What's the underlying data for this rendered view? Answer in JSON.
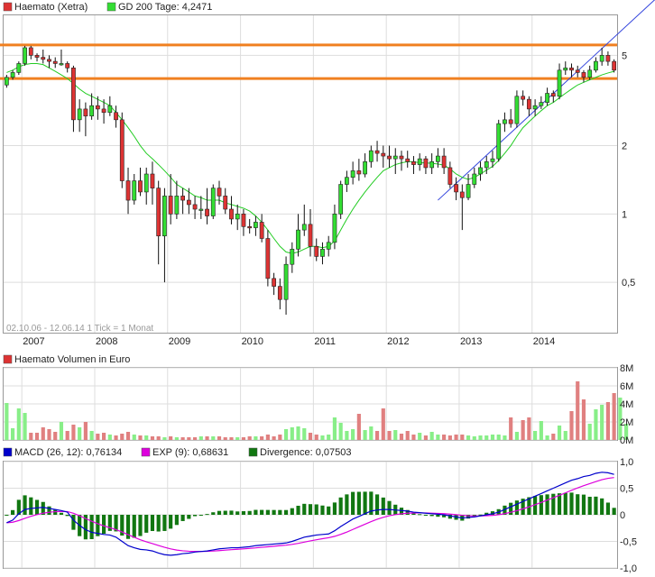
{
  "colors": {
    "up": "#33dd33",
    "down": "#dd3333",
    "ma": "#22cc22",
    "support": "#f08020",
    "trend": "#3344dd",
    "macd": "#0000cc",
    "exp": "#dd00dd",
    "divergence": "#117711",
    "vol_up": "#88ee88",
    "vol_down": "#e08080",
    "grid": "#dddddd"
  },
  "chart_data": [
    {
      "type": "candlestick",
      "legend": [
        {
          "label": "Haemato (Xetra)",
          "color": "#dd3333"
        },
        {
          "label": "GD 200 Tage: 4,2471",
          "color": "#33dd33"
        }
      ],
      "footer_note": "02.10.06 - 12.06.14   1 Tick = 1 Monat",
      "scale": "log",
      "ylim": [
        0.3,
        7.5
      ],
      "y_ticks": [
        {
          "v": 0.5,
          "label": "0,5"
        },
        {
          "v": 1,
          "label": "1"
        },
        {
          "v": 2,
          "label": "2"
        },
        {
          "v": 5,
          "label": "5"
        }
      ],
      "x_labels": [
        {
          "year": 2007,
          "label": "2007"
        },
        {
          "year": 2008,
          "label": "2008"
        },
        {
          "year": 2009,
          "label": "2009"
        },
        {
          "year": 2010,
          "label": "2010"
        },
        {
          "year": 2011,
          "label": "2011"
        },
        {
          "year": 2012,
          "label": "2012"
        },
        {
          "year": 2013,
          "label": "2013"
        },
        {
          "year": 2014,
          "label": "2014"
        }
      ],
      "start": "2006-10",
      "candles": [
        [
          3.7,
          4.0,
          4.1,
          3.6
        ],
        [
          4.0,
          4.2,
          4.3,
          3.9
        ],
        [
          4.2,
          4.6,
          4.7,
          4.1
        ],
        [
          4.6,
          5.4,
          5.5,
          4.5
        ],
        [
          5.4,
          5.0,
          5.5,
          4.8
        ],
        [
          5.0,
          4.9,
          5.1,
          4.7
        ],
        [
          4.9,
          4.8,
          5.3,
          4.6
        ],
        [
          4.8,
          4.7,
          5.0,
          4.4
        ],
        [
          4.7,
          4.6,
          4.9,
          4.4
        ],
        [
          4.6,
          4.6,
          5.3,
          4.5
        ],
        [
          4.6,
          4.4,
          4.7,
          4.2
        ],
        [
          4.4,
          2.6,
          4.5,
          2.3
        ],
        [
          2.6,
          2.9,
          3.2,
          2.3
        ],
        [
          2.9,
          2.7,
          3.1,
          2.2
        ],
        [
          2.7,
          3.0,
          3.4,
          2.6
        ],
        [
          3.0,
          2.9,
          3.3,
          2.6
        ],
        [
          2.9,
          2.8,
          3.2,
          2.5
        ],
        [
          2.8,
          3.0,
          3.3,
          2.7
        ],
        [
          2.8,
          2.6,
          3.0,
          2.4
        ],
        [
          2.6,
          1.4,
          2.8,
          1.3
        ],
        [
          1.4,
          1.15,
          1.6,
          1.0
        ],
        [
          1.15,
          1.4,
          1.5,
          1.1
        ],
        [
          1.4,
          1.25,
          1.6,
          1.2
        ],
        [
          1.25,
          1.5,
          1.6,
          1.1
        ],
        [
          1.5,
          1.3,
          1.7,
          1.1
        ],
        [
          1.3,
          0.8,
          1.4,
          0.6
        ],
        [
          0.8,
          1.2,
          1.3,
          0.5
        ],
        [
          1.2,
          1.0,
          1.5,
          0.9
        ],
        [
          1.0,
          1.2,
          1.4,
          0.95
        ],
        [
          1.2,
          1.15,
          1.3,
          1.0
        ],
        [
          1.15,
          1.1,
          1.3,
          1.0
        ],
        [
          1.1,
          1.05,
          1.2,
          0.95
        ],
        [
          1.05,
          1.05,
          1.2,
          0.95
        ],
        [
          1.05,
          0.98,
          1.3,
          0.9
        ],
        [
          0.98,
          1.3,
          1.35,
          0.95
        ],
        [
          1.3,
          1.2,
          1.4,
          1.1
        ],
        [
          1.2,
          1.05,
          1.3,
          1.0
        ],
        [
          1.05,
          0.95,
          1.2,
          0.9
        ],
        [
          0.95,
          1.0,
          1.1,
          0.85
        ],
        [
          1.0,
          0.88,
          1.05,
          0.8
        ],
        [
          0.88,
          0.87,
          0.95,
          0.82
        ],
        [
          0.87,
          0.92,
          0.98,
          0.8
        ],
        [
          0.92,
          0.78,
          1.0,
          0.75
        ],
        [
          0.78,
          0.52,
          0.85,
          0.48
        ],
        [
          0.52,
          0.48,
          0.55,
          0.44
        ],
        [
          0.48,
          0.42,
          0.52,
          0.38
        ],
        [
          0.42,
          0.6,
          0.65,
          0.36
        ],
        [
          0.6,
          0.7,
          0.75,
          0.55
        ],
        [
          0.7,
          0.85,
          1.0,
          0.65
        ],
        [
          0.85,
          0.9,
          1.1,
          0.8
        ],
        [
          0.9,
          0.72,
          1.05,
          0.65
        ],
        [
          0.72,
          0.65,
          0.78,
          0.62
        ],
        [
          0.65,
          0.7,
          0.75,
          0.6
        ],
        [
          0.7,
          0.75,
          0.8,
          0.65
        ],
        [
          0.75,
          1.0,
          1.1,
          0.7
        ],
        [
          1.0,
          1.35,
          1.4,
          0.95
        ],
        [
          1.35,
          1.45,
          1.55,
          1.25
        ],
        [
          1.45,
          1.55,
          1.7,
          1.35
        ],
        [
          1.55,
          1.5,
          1.75,
          1.4
        ],
        [
          1.5,
          1.7,
          1.85,
          1.45
        ],
        [
          1.7,
          1.9,
          2.0,
          1.6
        ],
        [
          1.9,
          1.85,
          2.1,
          1.7
        ],
        [
          1.85,
          1.8,
          2.0,
          1.6
        ],
        [
          1.8,
          1.75,
          2.0,
          1.6
        ],
        [
          1.75,
          1.8,
          1.95,
          1.5
        ],
        [
          1.8,
          1.75,
          1.9,
          1.55
        ],
        [
          1.75,
          1.7,
          1.9,
          1.6
        ],
        [
          1.7,
          1.65,
          1.8,
          1.5
        ],
        [
          1.65,
          1.75,
          1.85,
          1.55
        ],
        [
          1.75,
          1.6,
          1.8,
          1.5
        ],
        [
          1.6,
          1.7,
          1.85,
          1.5
        ],
        [
          1.7,
          1.8,
          1.95,
          1.6
        ],
        [
          1.8,
          1.6,
          1.95,
          1.5
        ],
        [
          1.6,
          1.35,
          1.7,
          1.3
        ],
        [
          1.35,
          1.25,
          1.45,
          1.15
        ],
        [
          1.25,
          1.18,
          1.35,
          0.85
        ],
        [
          1.18,
          1.35,
          1.5,
          1.15
        ],
        [
          1.35,
          1.5,
          1.6,
          1.3
        ],
        [
          1.5,
          1.6,
          1.7,
          1.4
        ],
        [
          1.6,
          1.7,
          1.8,
          1.5
        ],
        [
          1.7,
          1.75,
          1.9,
          1.6
        ],
        [
          1.75,
          2.5,
          2.6,
          1.7
        ],
        [
          2.5,
          2.6,
          2.8,
          2.3
        ],
        [
          2.6,
          2.5,
          2.9,
          2.4
        ],
        [
          2.5,
          3.3,
          3.5,
          2.4
        ],
        [
          3.3,
          3.2,
          3.5,
          3.0
        ],
        [
          3.2,
          2.9,
          3.3,
          2.7
        ],
        [
          2.9,
          3.0,
          3.2,
          2.7
        ],
        [
          3.0,
          3.1,
          3.3,
          2.9
        ],
        [
          3.1,
          3.4,
          3.6,
          3.0
        ],
        [
          3.4,
          3.3,
          3.5,
          3.1
        ],
        [
          3.3,
          4.3,
          4.6,
          3.2
        ],
        [
          4.3,
          4.4,
          4.7,
          4.1
        ],
        [
          4.4,
          4.3,
          4.6,
          4.0
        ],
        [
          4.3,
          4.2,
          4.5,
          4.0
        ],
        [
          4.2,
          4.0,
          4.3,
          3.8
        ],
        [
          4.0,
          4.3,
          4.5,
          3.9
        ],
        [
          4.3,
          4.7,
          4.9,
          4.2
        ],
        [
          4.7,
          5.0,
          5.4,
          4.5
        ],
        [
          5.0,
          4.7,
          5.2,
          4.5
        ],
        [
          4.7,
          4.3,
          4.8,
          4.2
        ]
      ],
      "gd200": [
        4.2,
        4.3,
        4.45,
        4.55,
        4.6,
        4.6,
        4.55,
        4.4,
        4.25,
        4.1,
        3.95,
        3.75,
        3.55,
        3.4,
        3.3,
        3.2,
        3.1,
        3.0,
        2.8,
        2.6,
        2.4,
        2.2,
        2.0,
        1.85,
        1.75,
        1.65,
        1.55,
        1.45,
        1.35,
        1.3,
        1.25,
        1.2,
        1.18,
        1.15,
        1.15,
        1.15,
        1.12,
        1.1,
        1.08,
        1.06,
        1.03,
        0.98,
        0.92,
        0.85,
        0.78,
        0.72,
        0.68,
        0.67,
        0.68,
        0.7,
        0.72,
        0.72,
        0.71,
        0.72,
        0.76,
        0.85,
        0.95,
        1.05,
        1.15,
        1.25,
        1.35,
        1.45,
        1.55,
        1.6,
        1.65,
        1.68,
        1.7,
        1.7,
        1.68,
        1.68,
        1.67,
        1.66,
        1.64,
        1.58,
        1.5,
        1.45,
        1.42,
        1.45,
        1.5,
        1.56,
        1.62,
        1.72,
        1.85,
        2.0,
        2.2,
        2.4,
        2.55,
        2.7,
        2.85,
        3.0,
        3.1,
        3.25,
        3.4,
        3.55,
        3.7,
        3.8,
        3.9,
        4.0,
        4.1,
        4.18,
        4.25
      ],
      "support_levels": [
        5.55,
        3.95
      ],
      "trendline": {
        "from": [
          71,
          1.15
        ],
        "to": [
          100,
          6.0
        ]
      }
    },
    {
      "type": "bar",
      "title": "Haemato Volumen in Euro",
      "ylim": [
        0,
        8
      ],
      "y_ticks": [
        {
          "v": 0,
          "label": "0M"
        },
        {
          "v": 2,
          "label": "2M"
        },
        {
          "v": 4,
          "label": "4M"
        },
        {
          "v": 6,
          "label": "6M"
        },
        {
          "v": 8,
          "label": "8M"
        }
      ],
      "volumes": [
        4.1,
        1.3,
        3.5,
        3.0,
        0.8,
        0.8,
        1.4,
        1.2,
        0.9,
        2.0,
        1.0,
        1.7,
        1.4,
        2.0,
        1.0,
        0.7,
        0.8,
        0.6,
        0.5,
        0.7,
        0.9,
        0.6,
        0.5,
        0.5,
        0.4,
        0.4,
        0.3,
        0.4,
        0.3,
        0.3,
        0.3,
        0.3,
        0.4,
        0.4,
        0.4,
        0.4,
        0.3,
        0.3,
        0.3,
        0.3,
        0.4,
        0.4,
        0.4,
        0.6,
        0.4,
        0.6,
        1.2,
        1.4,
        1.5,
        1.3,
        0.8,
        0.6,
        0.5,
        0.6,
        2.5,
        1.9,
        1.0,
        1.2,
        2.9,
        1.1,
        1.5,
        1.0,
        3.5,
        1.0,
        1.1,
        0.7,
        1.0,
        0.6,
        0.8,
        0.5,
        0.9,
        0.6,
        0.6,
        0.5,
        0.6,
        0.6,
        0.5,
        0.4,
        0.5,
        0.5,
        0.6,
        0.6,
        0.5,
        2.5,
        0.9,
        2.2,
        2.5,
        1.0,
        2.1,
        0.5,
        0.7,
        1.6,
        1.0,
        3.2,
        6.5,
        4.5,
        1.8,
        3.4,
        3.9,
        4.2,
        5.2,
        4.7,
        1.8
      ]
    },
    {
      "type": "line+bar",
      "legend": [
        {
          "label": "MACD (26, 12): 0,76134",
          "color": "#0000cc"
        },
        {
          "label": "EXP (9): 0,68631",
          "color": "#dd00dd"
        },
        {
          "label": "Divergence: 0,07503",
          "color": "#117711"
        }
      ],
      "ylim": [
        -1.0,
        1.0
      ],
      "y_ticks": [
        {
          "v": 1.0,
          "label": "1,0"
        },
        {
          "v": 0.5,
          "label": "0,5"
        },
        {
          "v": 0,
          "label": "0"
        },
        {
          "v": -0.5,
          "label": "-0,5"
        },
        {
          "v": -1.0,
          "label": "-1,0"
        }
      ],
      "macd": [
        -0.15,
        -0.1,
        0.02,
        0.1,
        0.12,
        0.13,
        0.14,
        0.12,
        0.1,
        0.08,
        0.05,
        -0.1,
        -0.2,
        -0.28,
        -0.33,
        -0.35,
        -0.37,
        -0.38,
        -0.42,
        -0.5,
        -0.58,
        -0.62,
        -0.65,
        -0.66,
        -0.68,
        -0.72,
        -0.75,
        -0.76,
        -0.75,
        -0.73,
        -0.72,
        -0.7,
        -0.69,
        -0.68,
        -0.66,
        -0.64,
        -0.63,
        -0.62,
        -0.62,
        -0.61,
        -0.6,
        -0.58,
        -0.57,
        -0.56,
        -0.55,
        -0.54,
        -0.53,
        -0.5,
        -0.46,
        -0.42,
        -0.4,
        -0.38,
        -0.37,
        -0.36,
        -0.3,
        -0.22,
        -0.15,
        -0.08,
        -0.03,
        0.02,
        0.07,
        0.09,
        0.1,
        0.1,
        0.09,
        0.08,
        0.07,
        0.05,
        0.04,
        0.03,
        0.02,
        0.01,
        0.0,
        -0.02,
        -0.04,
        -0.06,
        -0.05,
        -0.04,
        -0.02,
        0.0,
        0.02,
        0.05,
        0.1,
        0.15,
        0.2,
        0.25,
        0.3,
        0.35,
        0.4,
        0.45,
        0.5,
        0.55,
        0.6,
        0.65,
        0.68,
        0.72,
        0.74,
        0.78,
        0.8,
        0.79,
        0.76
      ]
    }
  ]
}
